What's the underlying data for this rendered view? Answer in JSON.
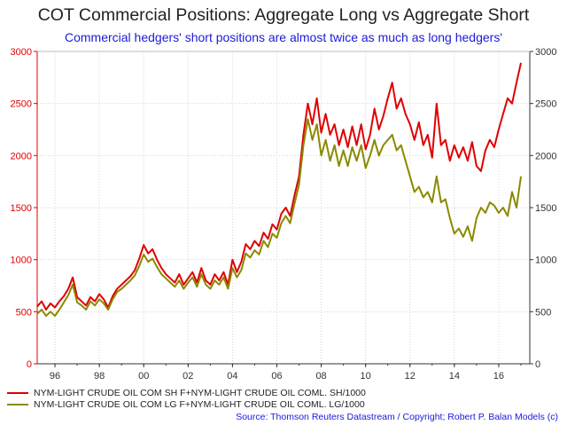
{
  "chart_data": {
    "type": "line",
    "title": "COT Commercial Positions: Aggregate Long vs Aggregate Short",
    "subtitle": "Commercial hedgers' short positions are almost twice as much as long hedgers'",
    "ylim": [
      0,
      3000
    ],
    "yticks": [
      0,
      500,
      1000,
      1500,
      2000,
      2500,
      3000
    ],
    "xlim": [
      1995.2,
      2017.4
    ],
    "xticks": [
      1996,
      1998,
      2000,
      2002,
      2004,
      2006,
      2008,
      2010,
      2012,
      2014,
      2016
    ],
    "xtick_labels": [
      "96",
      "98",
      "00",
      "02",
      "04",
      "06",
      "08",
      "10",
      "12",
      "14",
      "16"
    ],
    "left_axis_color": "#e00000",
    "right_axis_color": "#333333",
    "grid": true,
    "legend_position": "bottom",
    "series": [
      {
        "name": "NYM-LIGHT CRUDE OIL COM SH F+NYM-LIGHT CRUDE OIL COML. SH/1000",
        "color": "#e00000",
        "points": [
          [
            1995.2,
            550
          ],
          [
            1995.4,
            600
          ],
          [
            1995.6,
            520
          ],
          [
            1995.8,
            580
          ],
          [
            1996.0,
            540
          ],
          [
            1996.2,
            600
          ],
          [
            1996.4,
            650
          ],
          [
            1996.6,
            720
          ],
          [
            1996.8,
            830
          ],
          [
            1997.0,
            640
          ],
          [
            1997.2,
            600
          ],
          [
            1997.4,
            560
          ],
          [
            1997.6,
            640
          ],
          [
            1997.8,
            600
          ],
          [
            1998.0,
            670
          ],
          [
            1998.2,
            620
          ],
          [
            1998.4,
            540
          ],
          [
            1998.6,
            650
          ],
          [
            1998.8,
            720
          ],
          [
            1999.0,
            760
          ],
          [
            1999.2,
            800
          ],
          [
            1999.4,
            840
          ],
          [
            1999.6,
            900
          ],
          [
            1999.8,
            1010
          ],
          [
            2000.0,
            1140
          ],
          [
            2000.2,
            1060
          ],
          [
            2000.4,
            1100
          ],
          [
            2000.6,
            1000
          ],
          [
            2000.8,
            920
          ],
          [
            2001.0,
            860
          ],
          [
            2001.2,
            820
          ],
          [
            2001.4,
            780
          ],
          [
            2001.6,
            860
          ],
          [
            2001.8,
            760
          ],
          [
            2002.0,
            820
          ],
          [
            2002.2,
            880
          ],
          [
            2002.4,
            780
          ],
          [
            2002.6,
            920
          ],
          [
            2002.8,
            800
          ],
          [
            2003.0,
            760
          ],
          [
            2003.2,
            860
          ],
          [
            2003.4,
            800
          ],
          [
            2003.6,
            880
          ],
          [
            2003.8,
            760
          ],
          [
            2004.0,
            1000
          ],
          [
            2004.2,
            880
          ],
          [
            2004.4,
            980
          ],
          [
            2004.6,
            1150
          ],
          [
            2004.8,
            1100
          ],
          [
            2005.0,
            1180
          ],
          [
            2005.2,
            1130
          ],
          [
            2005.4,
            1260
          ],
          [
            2005.6,
            1200
          ],
          [
            2005.8,
            1340
          ],
          [
            2006.0,
            1290
          ],
          [
            2006.2,
            1440
          ],
          [
            2006.4,
            1500
          ],
          [
            2006.6,
            1420
          ],
          [
            2006.8,
            1620
          ],
          [
            2007.0,
            1800
          ],
          [
            2007.2,
            2200
          ],
          [
            2007.4,
            2500
          ],
          [
            2007.6,
            2300
          ],
          [
            2007.8,
            2550
          ],
          [
            2008.0,
            2220
          ],
          [
            2008.2,
            2400
          ],
          [
            2008.4,
            2200
          ],
          [
            2008.6,
            2300
          ],
          [
            2008.8,
            2100
          ],
          [
            2009.0,
            2250
          ],
          [
            2009.2,
            2080
          ],
          [
            2009.4,
            2280
          ],
          [
            2009.6,
            2100
          ],
          [
            2009.8,
            2300
          ],
          [
            2010.0,
            2060
          ],
          [
            2010.2,
            2200
          ],
          [
            2010.4,
            2450
          ],
          [
            2010.6,
            2250
          ],
          [
            2010.8,
            2380
          ],
          [
            2011.0,
            2550
          ],
          [
            2011.2,
            2700
          ],
          [
            2011.4,
            2450
          ],
          [
            2011.6,
            2550
          ],
          [
            2011.8,
            2400
          ],
          [
            2012.0,
            2300
          ],
          [
            2012.2,
            2150
          ],
          [
            2012.4,
            2320
          ],
          [
            2012.6,
            2100
          ],
          [
            2012.8,
            2200
          ],
          [
            2013.0,
            1980
          ],
          [
            2013.2,
            2500
          ],
          [
            2013.4,
            2100
          ],
          [
            2013.6,
            2150
          ],
          [
            2013.8,
            1950
          ],
          [
            2014.0,
            2100
          ],
          [
            2014.2,
            1980
          ],
          [
            2014.4,
            2080
          ],
          [
            2014.6,
            1950
          ],
          [
            2014.8,
            2130
          ],
          [
            2015.0,
            1900
          ],
          [
            2015.2,
            1850
          ],
          [
            2015.4,
            2050
          ],
          [
            2015.6,
            2150
          ],
          [
            2015.8,
            2080
          ],
          [
            2016.0,
            2250
          ],
          [
            2016.2,
            2400
          ],
          [
            2016.4,
            2550
          ],
          [
            2016.6,
            2500
          ],
          [
            2016.8,
            2700
          ],
          [
            2017.0,
            2890
          ]
        ]
      },
      {
        "name": "NYM-LIGHT CRUDE OIL COM LG F+NYM-LIGHT CRUDE OIL COML. LG/1000",
        "color": "#8a8a00",
        "points": [
          [
            1995.2,
            480
          ],
          [
            1995.4,
            520
          ],
          [
            1995.6,
            460
          ],
          [
            1995.8,
            500
          ],
          [
            1996.0,
            460
          ],
          [
            1996.2,
            520
          ],
          [
            1996.4,
            590
          ],
          [
            1996.6,
            660
          ],
          [
            1996.8,
            760
          ],
          [
            1997.0,
            590
          ],
          [
            1997.2,
            560
          ],
          [
            1997.4,
            520
          ],
          [
            1997.6,
            600
          ],
          [
            1997.8,
            560
          ],
          [
            1998.0,
            620
          ],
          [
            1998.2,
            580
          ],
          [
            1998.4,
            520
          ],
          [
            1998.6,
            620
          ],
          [
            1998.8,
            690
          ],
          [
            1999.0,
            720
          ],
          [
            1999.2,
            760
          ],
          [
            1999.4,
            800
          ],
          [
            1999.6,
            850
          ],
          [
            1999.8,
            940
          ],
          [
            2000.0,
            1050
          ],
          [
            2000.2,
            980
          ],
          [
            2000.4,
            1010
          ],
          [
            2000.6,
            930
          ],
          [
            2000.8,
            860
          ],
          [
            2001.0,
            820
          ],
          [
            2001.2,
            780
          ],
          [
            2001.4,
            740
          ],
          [
            2001.6,
            800
          ],
          [
            2001.8,
            720
          ],
          [
            2002.0,
            780
          ],
          [
            2002.2,
            830
          ],
          [
            2002.4,
            740
          ],
          [
            2002.6,
            860
          ],
          [
            2002.8,
            760
          ],
          [
            2003.0,
            720
          ],
          [
            2003.2,
            800
          ],
          [
            2003.4,
            760
          ],
          [
            2003.6,
            830
          ],
          [
            2003.8,
            720
          ],
          [
            2004.0,
            920
          ],
          [
            2004.2,
            830
          ],
          [
            2004.4,
            900
          ],
          [
            2004.6,
            1060
          ],
          [
            2004.8,
            1020
          ],
          [
            2005.0,
            1090
          ],
          [
            2005.2,
            1050
          ],
          [
            2005.4,
            1180
          ],
          [
            2005.6,
            1120
          ],
          [
            2005.8,
            1250
          ],
          [
            2006.0,
            1210
          ],
          [
            2006.2,
            1350
          ],
          [
            2006.4,
            1420
          ],
          [
            2006.6,
            1350
          ],
          [
            2006.8,
            1540
          ],
          [
            2007.0,
            1720
          ],
          [
            2007.2,
            2100
          ],
          [
            2007.4,
            2350
          ],
          [
            2007.6,
            2150
          ],
          [
            2007.8,
            2300
          ],
          [
            2008.0,
            2000
          ],
          [
            2008.2,
            2150
          ],
          [
            2008.4,
            1950
          ],
          [
            2008.6,
            2100
          ],
          [
            2008.8,
            1900
          ],
          [
            2009.0,
            2050
          ],
          [
            2009.2,
            1900
          ],
          [
            2009.4,
            2080
          ],
          [
            2009.6,
            1950
          ],
          [
            2009.8,
            2100
          ],
          [
            2010.0,
            1880
          ],
          [
            2010.2,
            2000
          ],
          [
            2010.4,
            2150
          ],
          [
            2010.6,
            2000
          ],
          [
            2010.8,
            2100
          ],
          [
            2011.0,
            2150
          ],
          [
            2011.2,
            2200
          ],
          [
            2011.4,
            2050
          ],
          [
            2011.6,
            2100
          ],
          [
            2011.8,
            1950
          ],
          [
            2012.0,
            1800
          ],
          [
            2012.2,
            1650
          ],
          [
            2012.4,
            1700
          ],
          [
            2012.6,
            1600
          ],
          [
            2012.8,
            1650
          ],
          [
            2013.0,
            1550
          ],
          [
            2013.2,
            1800
          ],
          [
            2013.4,
            1550
          ],
          [
            2013.6,
            1580
          ],
          [
            2013.8,
            1400
          ],
          [
            2014.0,
            1250
          ],
          [
            2014.2,
            1300
          ],
          [
            2014.4,
            1220
          ],
          [
            2014.6,
            1320
          ],
          [
            2014.8,
            1180
          ],
          [
            2015.0,
            1400
          ],
          [
            2015.2,
            1500
          ],
          [
            2015.4,
            1450
          ],
          [
            2015.6,
            1550
          ],
          [
            2015.8,
            1520
          ],
          [
            2016.0,
            1450
          ],
          [
            2016.2,
            1500
          ],
          [
            2016.4,
            1420
          ],
          [
            2016.6,
            1650
          ],
          [
            2016.8,
            1500
          ],
          [
            2017.0,
            1800
          ]
        ]
      }
    ]
  },
  "footer": {
    "source": "Source: Thomson Reuters Datastream / Copyright; Robert P. Balan Models (c)"
  }
}
